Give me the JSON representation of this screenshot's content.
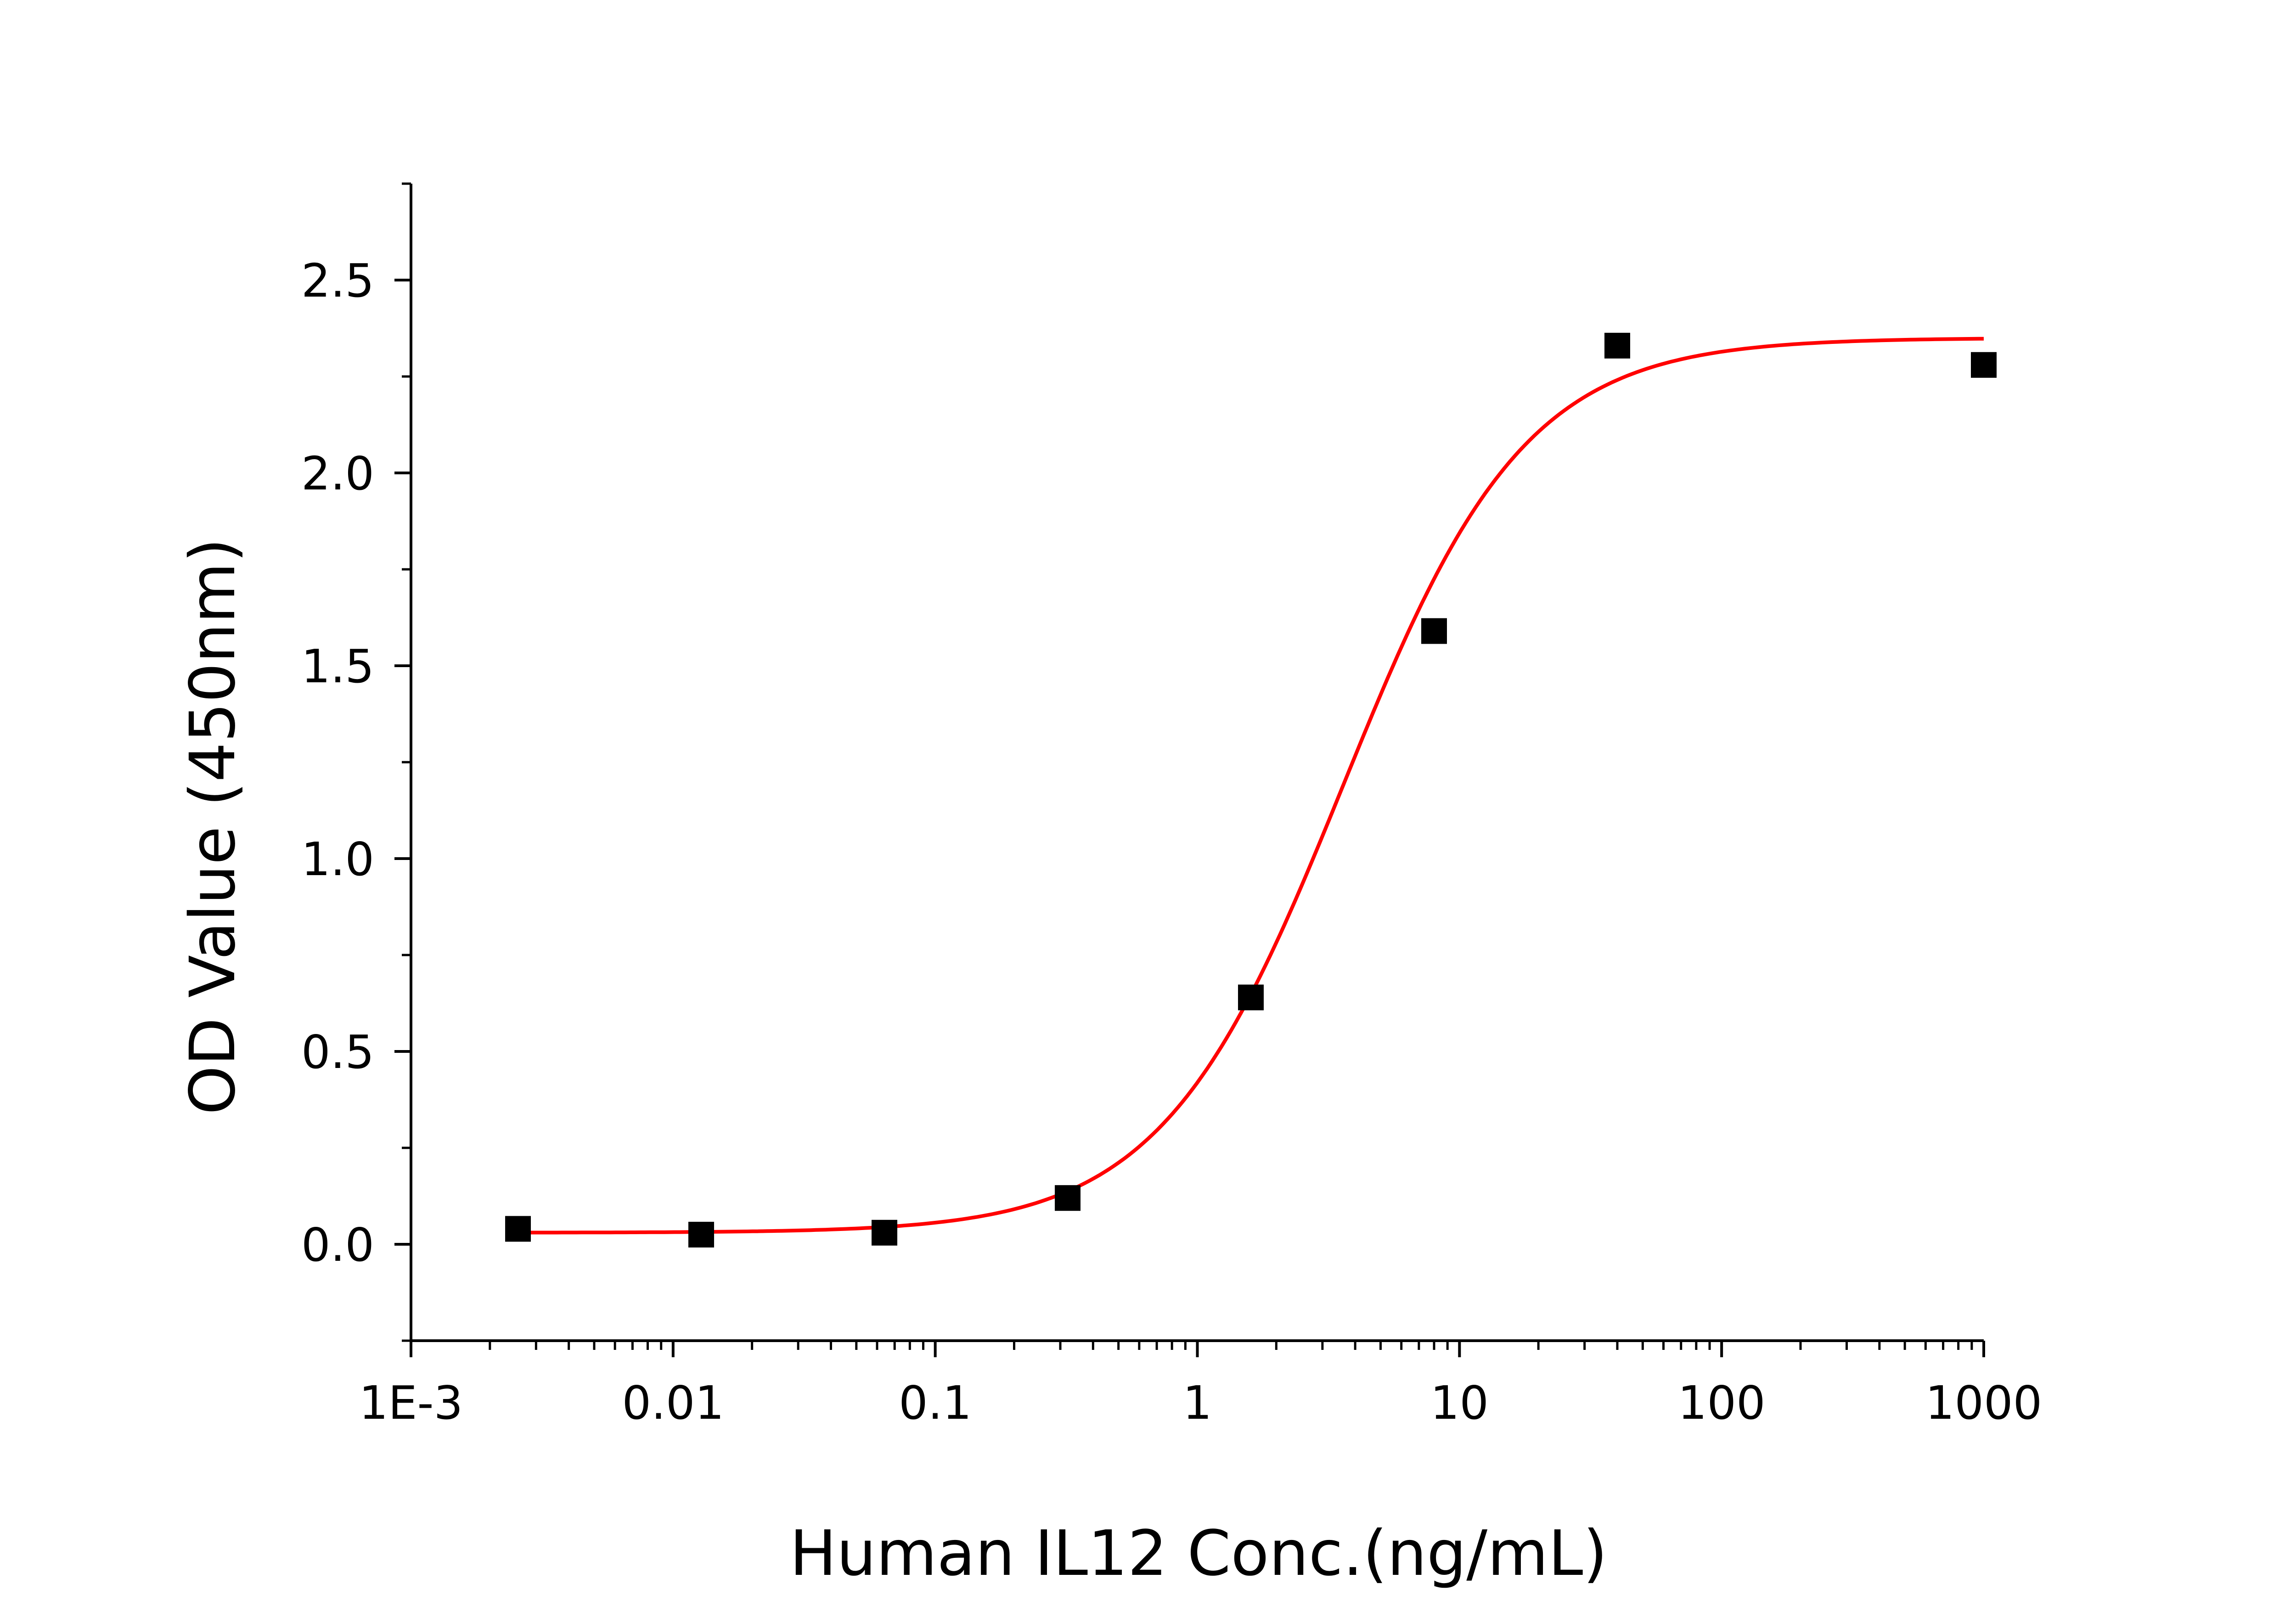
{
  "chart_data": {
    "type": "scatter",
    "title": "",
    "xlabel": "Human IL12 Conc.(ng/mL)",
    "ylabel": "OD Value (450nm)",
    "x_scale": "log",
    "xlim": [
      0.001,
      1000
    ],
    "ylim": [
      -0.25,
      2.75
    ],
    "x_ticks": [
      {
        "value": 0.001,
        "label": "1E-3"
      },
      {
        "value": 0.01,
        "label": "0.01"
      },
      {
        "value": 0.1,
        "label": "0.1"
      },
      {
        "value": 1,
        "label": "1"
      },
      {
        "value": 10,
        "label": "10"
      },
      {
        "value": 100,
        "label": "100"
      },
      {
        "value": 1000,
        "label": "1000"
      }
    ],
    "y_ticks": [
      {
        "value": 0.0,
        "label": "0.0"
      },
      {
        "value": 0.5,
        "label": "0.5"
      },
      {
        "value": 1.0,
        "label": "1.0"
      },
      {
        "value": 1.5,
        "label": "1.5"
      },
      {
        "value": 2.0,
        "label": "2.0"
      },
      {
        "value": 2.5,
        "label": "2.5"
      }
    ],
    "grid": false,
    "legend": "none",
    "series": [
      {
        "marker": "square",
        "color": "#000000",
        "x": [
          0.00256,
          0.0128,
          0.064,
          0.32,
          1.6,
          8,
          40,
          1000
        ],
        "y": [
          0.04,
          0.025,
          0.03,
          0.12,
          0.64,
          1.59,
          2.33,
          2.28
        ]
      }
    ],
    "fit_curve": {
      "model": "4PL",
      "color": "#ff0000",
      "bottom": 0.03,
      "top": 2.35,
      "ec50": 3.6,
      "hill": 1.25,
      "x_range": [
        0.00256,
        1000
      ]
    }
  }
}
